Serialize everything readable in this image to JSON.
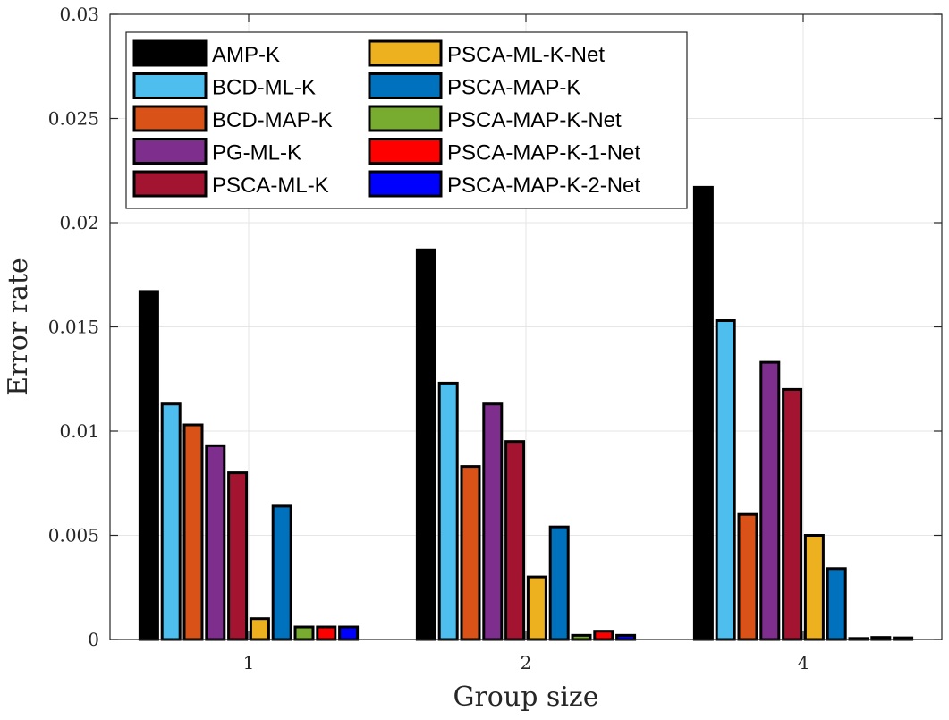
{
  "chart_data": {
    "type": "bar",
    "title": "",
    "xlabel": "Group size",
    "ylabel": "Error rate",
    "categories": [
      "1",
      "2",
      "4"
    ],
    "ylim": [
      0,
      0.03
    ],
    "yticks": [
      "0",
      "0.005",
      "0.01",
      "0.015",
      "0.02",
      "0.025",
      "0.03"
    ],
    "ytick_values": [
      0,
      0.005,
      0.01,
      0.015,
      0.02,
      0.025,
      0.03
    ],
    "grid": true,
    "legend_position": "top-left",
    "series": [
      {
        "name": "AMP-K",
        "color": "#000000",
        "values": [
          0.0167,
          0.0187,
          0.0217
        ]
      },
      {
        "name": "BCD-ML-K",
        "color": "#4DBEEE",
        "values": [
          0.0113,
          0.0123,
          0.0153
        ]
      },
      {
        "name": "BCD-MAP-K",
        "color": "#D95319",
        "values": [
          0.0103,
          0.0083,
          0.006
        ]
      },
      {
        "name": "PG-ML-K",
        "color": "#7E2F8E",
        "values": [
          0.0093,
          0.0113,
          0.0133
        ]
      },
      {
        "name": "PSCA-ML-K",
        "color": "#A2142F",
        "values": [
          0.008,
          0.0095,
          0.012
        ]
      },
      {
        "name": "PSCA-ML-K-Net",
        "color": "#EDB120",
        "values": [
          0.001,
          0.003,
          0.005
        ]
      },
      {
        "name": "PSCA-MAP-K",
        "color": "#0072BD",
        "values": [
          0.0064,
          0.0054,
          0.0034
        ]
      },
      {
        "name": "PSCA-MAP-K-Net",
        "color": "#77AC30",
        "values": [
          0.0006,
          0.0002,
          5e-05
        ]
      },
      {
        "name": "PSCA-MAP-K-1-Net",
        "color": "#FF0000",
        "values": [
          0.0006,
          0.0004,
          0.0001
        ]
      },
      {
        "name": "PSCA-MAP-K-2-Net",
        "color": "#0000FF",
        "values": [
          0.0006,
          0.0002,
          8e-05
        ]
      }
    ]
  }
}
